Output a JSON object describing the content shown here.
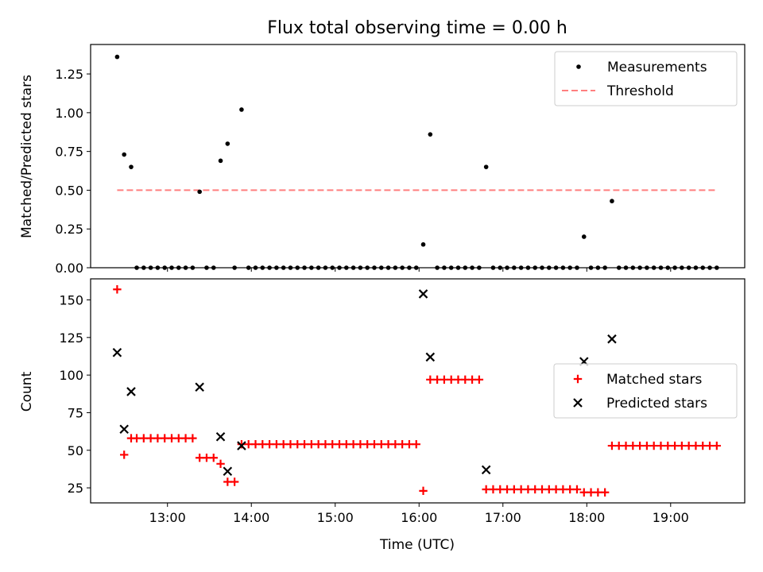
{
  "colors": {
    "measurement": "#000000",
    "threshold": "#ff7f7f",
    "matched": "#ff0000",
    "predicted": "#000000",
    "axes": "#000000"
  },
  "chart_data": [
    {
      "type": "scatter",
      "title": "Flux total observing time = 0.00 h",
      "xlabel": "",
      "ylabel": "Matched/Predicted stars",
      "xlim": [
        "12:05",
        "19:53"
      ],
      "ylim": [
        0,
        1.44
      ],
      "yticks": [
        "0.00",
        "0.25",
        "0.50",
        "0.75",
        "1.00",
        "1.25"
      ],
      "grid": false,
      "legend_position": "upper right",
      "legend": [
        {
          "label": "Measurements",
          "marker": "dot"
        },
        {
          "label": "Threshold",
          "marker": "dashed-line"
        }
      ],
      "series": [
        {
          "name": "Measurements",
          "points": [
            [
              "12:24",
              1.36
            ],
            [
              "12:29",
              0.73
            ],
            [
              "12:34",
              0.65
            ],
            [
              "12:38",
              0
            ],
            [
              "12:43",
              0
            ],
            [
              "12:48",
              0
            ],
            [
              "12:53",
              0
            ],
            [
              "12:58",
              0
            ],
            [
              "13:03",
              0
            ],
            [
              "13:08",
              0
            ],
            [
              "13:13",
              0
            ],
            [
              "13:18",
              0
            ],
            [
              "13:23",
              0.49
            ],
            [
              "13:28",
              0
            ],
            [
              "13:33",
              0
            ],
            [
              "13:38",
              0.69
            ],
            [
              "13:43",
              0.8
            ],
            [
              "13:48",
              0
            ],
            [
              "13:53",
              1.02
            ],
            [
              "13:58",
              0
            ],
            [
              "14:03",
              0
            ],
            [
              "14:08",
              0
            ],
            [
              "14:13",
              0
            ],
            [
              "14:18",
              0
            ],
            [
              "14:23",
              0
            ],
            [
              "14:28",
              0
            ],
            [
              "14:33",
              0
            ],
            [
              "14:38",
              0
            ],
            [
              "14:43",
              0
            ],
            [
              "14:48",
              0
            ],
            [
              "14:53",
              0
            ],
            [
              "14:58",
              0
            ],
            [
              "15:03",
              0
            ],
            [
              "15:08",
              0
            ],
            [
              "15:13",
              0
            ],
            [
              "15:18",
              0
            ],
            [
              "15:23",
              0
            ],
            [
              "15:28",
              0
            ],
            [
              "15:33",
              0
            ],
            [
              "15:38",
              0
            ],
            [
              "15:43",
              0
            ],
            [
              "15:48",
              0
            ],
            [
              "15:53",
              0
            ],
            [
              "15:58",
              0
            ],
            [
              "16:03",
              0.15
            ],
            [
              "16:08",
              0.86
            ],
            [
              "16:13",
              0
            ],
            [
              "16:18",
              0
            ],
            [
              "16:23",
              0
            ],
            [
              "16:28",
              0
            ],
            [
              "16:33",
              0
            ],
            [
              "16:38",
              0
            ],
            [
              "16:43",
              0
            ],
            [
              "16:48",
              0.65
            ],
            [
              "16:53",
              0
            ],
            [
              "16:58",
              0
            ],
            [
              "17:03",
              0
            ],
            [
              "17:08",
              0
            ],
            [
              "17:13",
              0
            ],
            [
              "17:18",
              0
            ],
            [
              "17:23",
              0
            ],
            [
              "17:28",
              0
            ],
            [
              "17:33",
              0
            ],
            [
              "17:38",
              0
            ],
            [
              "17:43",
              0
            ],
            [
              "17:48",
              0
            ],
            [
              "17:53",
              0
            ],
            [
              "17:58",
              0.2
            ],
            [
              "18:03",
              0
            ],
            [
              "18:08",
              0
            ],
            [
              "18:13",
              0
            ],
            [
              "18:18",
              0.43
            ],
            [
              "18:23",
              0
            ],
            [
              "18:28",
              0
            ],
            [
              "18:33",
              0
            ],
            [
              "18:38",
              0
            ],
            [
              "18:43",
              0
            ],
            [
              "18:48",
              0
            ],
            [
              "18:53",
              0
            ],
            [
              "18:58",
              0
            ],
            [
              "19:03",
              0
            ],
            [
              "19:08",
              0
            ],
            [
              "19:13",
              0
            ],
            [
              "19:18",
              0
            ],
            [
              "19:23",
              0
            ],
            [
              "19:28",
              0
            ],
            [
              "19:33",
              0
            ]
          ]
        },
        {
          "name": "Threshold",
          "value": 0.5,
          "x": [
            "12:24",
            "19:33"
          ]
        }
      ]
    },
    {
      "type": "scatter",
      "title": "",
      "xlabel": "Time (UTC)",
      "ylabel": "Count",
      "xlim": [
        "12:05",
        "19:53"
      ],
      "ylim": [
        15,
        164
      ],
      "yticks": [
        "25",
        "50",
        "75",
        "100",
        "125",
        "150"
      ],
      "xticks": [
        "13:00",
        "14:00",
        "15:00",
        "16:00",
        "17:00",
        "18:00",
        "19:00"
      ],
      "grid": false,
      "legend_position": "center right",
      "legend": [
        {
          "label": "Matched stars",
          "marker": "plus"
        },
        {
          "label": "Predicted stars",
          "marker": "x"
        }
      ],
      "series": [
        {
          "name": "Matched stars",
          "points": [
            [
              "12:24",
              157
            ],
            [
              "12:29",
              47
            ],
            [
              "12:34",
              58
            ],
            [
              "12:38",
              58
            ],
            [
              "12:43",
              58
            ],
            [
              "12:48",
              58
            ],
            [
              "12:53",
              58
            ],
            [
              "12:58",
              58
            ],
            [
              "13:03",
              58
            ],
            [
              "13:08",
              58
            ],
            [
              "13:13",
              58
            ],
            [
              "13:18",
              58
            ],
            [
              "13:23",
              45
            ],
            [
              "13:28",
              45
            ],
            [
              "13:33",
              45
            ],
            [
              "13:38",
              41
            ],
            [
              "13:43",
              29
            ],
            [
              "13:48",
              29
            ],
            [
              "13:53",
              54
            ],
            [
              "13:58",
              54
            ],
            [
              "14:03",
              54
            ],
            [
              "14:08",
              54
            ],
            [
              "14:13",
              54
            ],
            [
              "14:18",
              54
            ],
            [
              "14:23",
              54
            ],
            [
              "14:28",
              54
            ],
            [
              "14:33",
              54
            ],
            [
              "14:38",
              54
            ],
            [
              "14:43",
              54
            ],
            [
              "14:48",
              54
            ],
            [
              "14:53",
              54
            ],
            [
              "14:58",
              54
            ],
            [
              "15:03",
              54
            ],
            [
              "15:08",
              54
            ],
            [
              "15:13",
              54
            ],
            [
              "15:18",
              54
            ],
            [
              "15:23",
              54
            ],
            [
              "15:28",
              54
            ],
            [
              "15:33",
              54
            ],
            [
              "15:38",
              54
            ],
            [
              "15:43",
              54
            ],
            [
              "15:48",
              54
            ],
            [
              "15:53",
              54
            ],
            [
              "15:58",
              54
            ],
            [
              "16:03",
              23
            ],
            [
              "16:08",
              97
            ],
            [
              "16:13",
              97
            ],
            [
              "16:18",
              97
            ],
            [
              "16:23",
              97
            ],
            [
              "16:28",
              97
            ],
            [
              "16:33",
              97
            ],
            [
              "16:38",
              97
            ],
            [
              "16:43",
              97
            ],
            [
              "16:48",
              24
            ],
            [
              "16:53",
              24
            ],
            [
              "16:58",
              24
            ],
            [
              "17:03",
              24
            ],
            [
              "17:08",
              24
            ],
            [
              "17:13",
              24
            ],
            [
              "17:18",
              24
            ],
            [
              "17:23",
              24
            ],
            [
              "17:28",
              24
            ],
            [
              "17:33",
              24
            ],
            [
              "17:38",
              24
            ],
            [
              "17:43",
              24
            ],
            [
              "17:48",
              24
            ],
            [
              "17:53",
              24
            ],
            [
              "17:58",
              22
            ],
            [
              "18:03",
              22
            ],
            [
              "18:08",
              22
            ],
            [
              "18:13",
              22
            ],
            [
              "18:18",
              53
            ],
            [
              "18:23",
              53
            ],
            [
              "18:28",
              53
            ],
            [
              "18:33",
              53
            ],
            [
              "18:38",
              53
            ],
            [
              "18:43",
              53
            ],
            [
              "18:48",
              53
            ],
            [
              "18:53",
              53
            ],
            [
              "18:58",
              53
            ],
            [
              "19:03",
              53
            ],
            [
              "19:08",
              53
            ],
            [
              "19:13",
              53
            ],
            [
              "19:18",
              53
            ],
            [
              "19:23",
              53
            ],
            [
              "19:28",
              53
            ],
            [
              "19:33",
              53
            ]
          ]
        },
        {
          "name": "Predicted stars",
          "points": [
            [
              "12:24",
              115
            ],
            [
              "12:29",
              64
            ],
            [
              "12:34",
              89
            ],
            [
              "13:23",
              92
            ],
            [
              "13:38",
              59
            ],
            [
              "13:43",
              36
            ],
            [
              "13:53",
              53
            ],
            [
              "16:03",
              154
            ],
            [
              "16:08",
              112
            ],
            [
              "16:48",
              37
            ],
            [
              "17:58",
              109
            ],
            [
              "18:18",
              124
            ]
          ]
        }
      ]
    }
  ]
}
